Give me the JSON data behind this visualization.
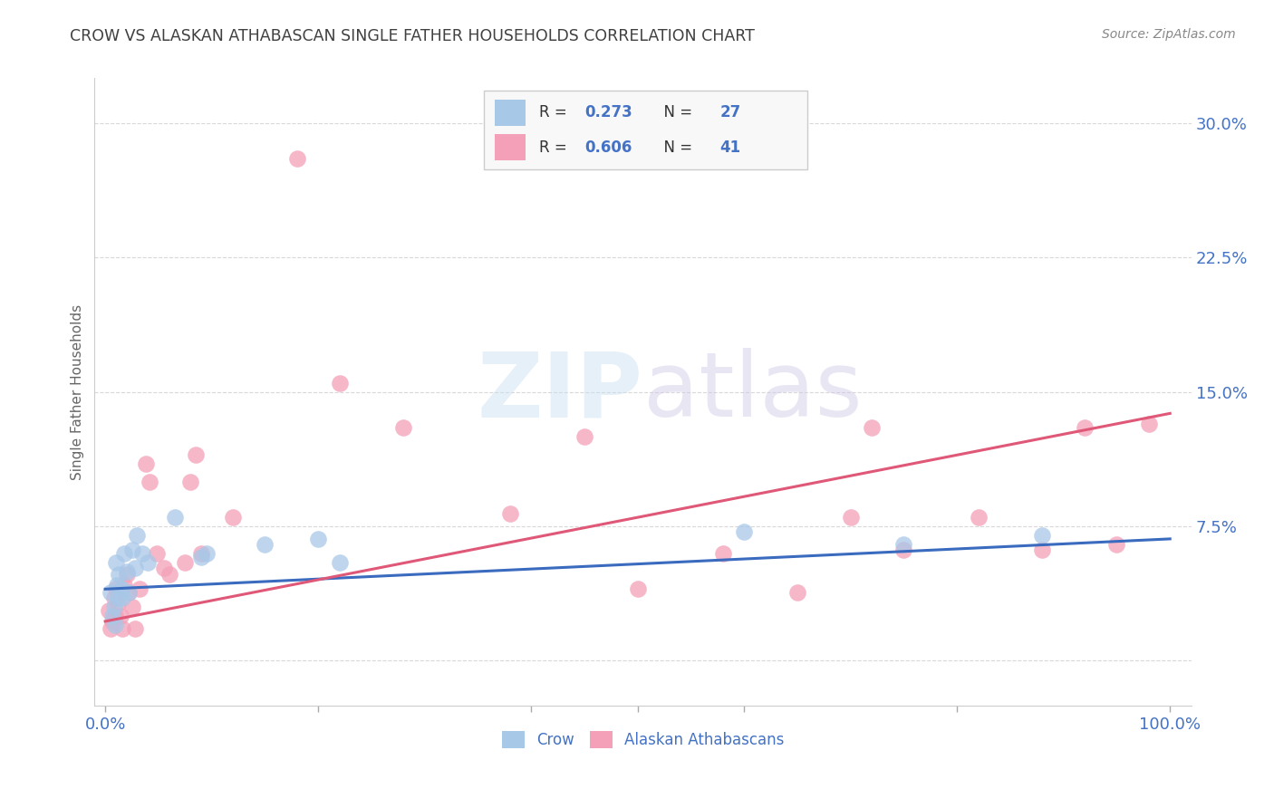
{
  "title": "CROW VS ALASKAN ATHABASCAN SINGLE FATHER HOUSEHOLDS CORRELATION CHART",
  "source": "Source: ZipAtlas.com",
  "ylabel": "Single Father Households",
  "ytick_vals": [
    0.0,
    0.075,
    0.15,
    0.225,
    0.3
  ],
  "ytick_labels": [
    "",
    "7.5%",
    "15.0%",
    "22.5%",
    "30.0%"
  ],
  "xlim": [
    -0.01,
    1.02
  ],
  "ylim": [
    -0.025,
    0.325
  ],
  "watermark": "ZIPatlas",
  "crow_color": "#a8c8e8",
  "crow_line_color": "#3a6bbf",
  "athabascan_color": "#f4a0b8",
  "athabascan_line_color": "#e05878",
  "blue_text_color": "#4472c4",
  "title_color": "#404040",
  "source_color": "#888888",
  "grid_color": "#d8d8d8",
  "crow_scatter_x": [
    0.005,
    0.007,
    0.008,
    0.009,
    0.01,
    0.011,
    0.012,
    0.013,
    0.015,
    0.016,
    0.018,
    0.02,
    0.022,
    0.025,
    0.028,
    0.03,
    0.035,
    0.04,
    0.065,
    0.09,
    0.095,
    0.15,
    0.2,
    0.22,
    0.6,
    0.75,
    0.88
  ],
  "crow_scatter_y": [
    0.038,
    0.025,
    0.03,
    0.02,
    0.055,
    0.042,
    0.035,
    0.048,
    0.04,
    0.035,
    0.06,
    0.05,
    0.038,
    0.062,
    0.052,
    0.07,
    0.06,
    0.055,
    0.08,
    0.058,
    0.06,
    0.065,
    0.068,
    0.055,
    0.072,
    0.065,
    0.07
  ],
  "athabascan_scatter_x": [
    0.003,
    0.005,
    0.007,
    0.008,
    0.009,
    0.01,
    0.012,
    0.014,
    0.016,
    0.018,
    0.02,
    0.022,
    0.025,
    0.028,
    0.032,
    0.038,
    0.042,
    0.048,
    0.055,
    0.06,
    0.075,
    0.08,
    0.085,
    0.09,
    0.12,
    0.18,
    0.22,
    0.28,
    0.38,
    0.45,
    0.5,
    0.58,
    0.65,
    0.7,
    0.72,
    0.75,
    0.82,
    0.88,
    0.92,
    0.95,
    0.98
  ],
  "athabascan_scatter_y": [
    0.028,
    0.018,
    0.022,
    0.035,
    0.025,
    0.04,
    0.032,
    0.025,
    0.018,
    0.042,
    0.048,
    0.038,
    0.03,
    0.018,
    0.04,
    0.11,
    0.1,
    0.06,
    0.052,
    0.048,
    0.055,
    0.1,
    0.115,
    0.06,
    0.08,
    0.28,
    0.155,
    0.13,
    0.082,
    0.125,
    0.04,
    0.06,
    0.038,
    0.08,
    0.13,
    0.062,
    0.08,
    0.062,
    0.13,
    0.065,
    0.132
  ],
  "crow_line_x": [
    0.0,
    1.0
  ],
  "crow_line_y": [
    0.04,
    0.068
  ],
  "athabascan_line_x": [
    0.0,
    1.0
  ],
  "athabascan_line_y": [
    0.022,
    0.138
  ],
  "marker_size": 180
}
